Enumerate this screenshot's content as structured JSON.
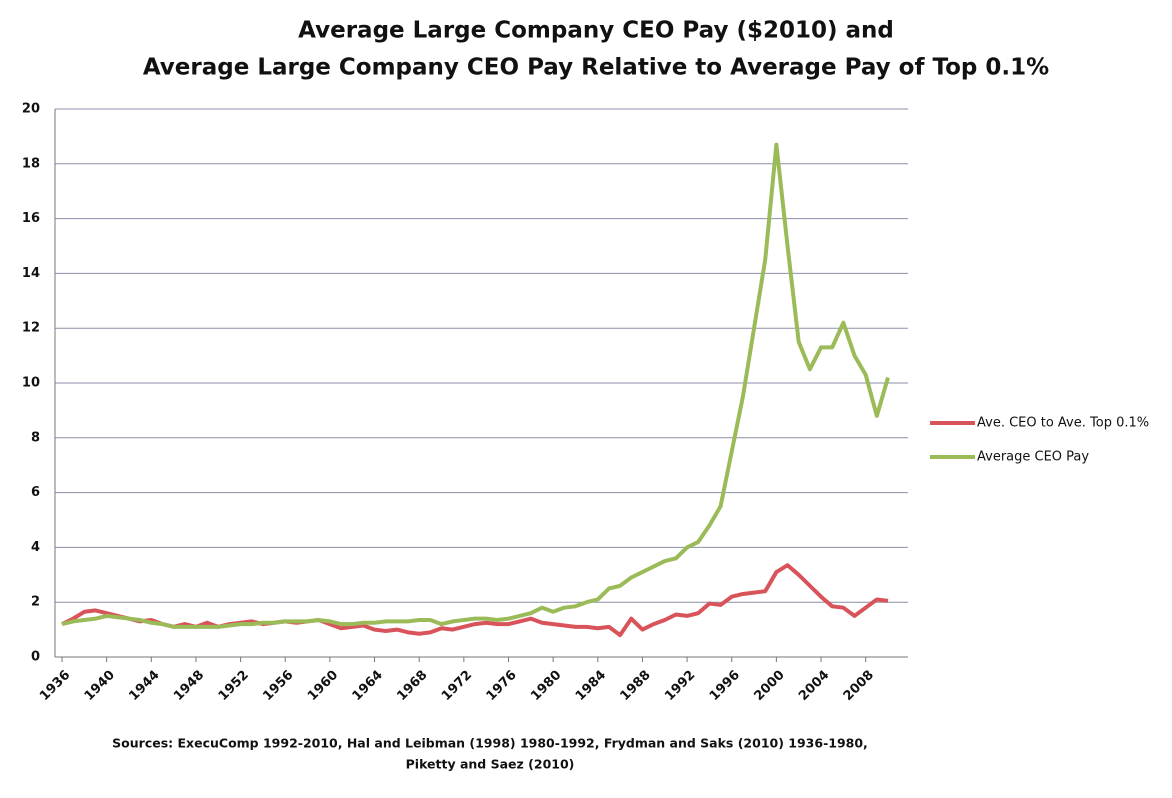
{
  "chart_data": {
    "type": "line",
    "title": [
      "Average Large Company CEO Pay ($2010) and",
      "Average Large Company CEO Pay Relative to Average Pay of Top 0.1%"
    ],
    "source": [
      "Sources:  ExecuComp 1992-2010, Hal and Leibman (1998) 1980-1992, Frydman and Saks (2010) 1936-1980,",
      "Piketty and Saez (2010)"
    ],
    "x": [
      1936,
      1937,
      1938,
      1939,
      1940,
      1941,
      1942,
      1943,
      1944,
      1945,
      1946,
      1947,
      1948,
      1949,
      1950,
      1951,
      1952,
      1953,
      1954,
      1955,
      1956,
      1957,
      1958,
      1959,
      1960,
      1961,
      1962,
      1963,
      1964,
      1965,
      1966,
      1967,
      1968,
      1969,
      1970,
      1971,
      1972,
      1973,
      1974,
      1975,
      1976,
      1977,
      1978,
      1979,
      1980,
      1981,
      1982,
      1983,
      1984,
      1985,
      1986,
      1987,
      1988,
      1989,
      1990,
      1991,
      1992,
      1993,
      1994,
      1995,
      1996,
      1997,
      1998,
      1999,
      2000,
      2001,
      2002,
      2003,
      2004,
      2005,
      2006,
      2007,
      2008,
      2009,
      2010
    ],
    "series": [
      {
        "name": "Ave. CEO to Ave. Top 0.1%",
        "color": "#d9545a",
        "values": [
          1.2,
          1.4,
          1.65,
          1.7,
          1.6,
          1.5,
          1.4,
          1.3,
          1.35,
          1.2,
          1.1,
          1.2,
          1.1,
          1.25,
          1.1,
          1.2,
          1.25,
          1.3,
          1.2,
          1.25,
          1.3,
          1.25,
          1.3,
          1.35,
          1.2,
          1.05,
          1.1,
          1.15,
          1.0,
          0.95,
          1.0,
          0.9,
          0.85,
          0.9,
          1.05,
          1.0,
          1.1,
          1.2,
          1.25,
          1.2,
          1.2,
          1.3,
          1.4,
          1.25,
          1.2,
          1.15,
          1.1,
          1.1,
          1.05,
          1.1,
          0.8,
          1.4,
          1.0,
          1.2,
          1.35,
          1.55,
          1.5,
          1.6,
          1.95,
          1.9,
          2.2,
          2.3,
          2.35,
          2.4,
          3.1,
          3.35,
          3.0,
          2.6,
          2.2,
          1.85,
          1.8,
          1.5,
          1.8,
          2.1,
          2.05
        ]
      },
      {
        "name": "Average CEO Pay",
        "color": "#9bbb59",
        "values": [
          1.2,
          1.3,
          1.35,
          1.4,
          1.5,
          1.45,
          1.4,
          1.35,
          1.25,
          1.2,
          1.1,
          1.1,
          1.1,
          1.1,
          1.1,
          1.15,
          1.2,
          1.2,
          1.25,
          1.25,
          1.3,
          1.3,
          1.3,
          1.35,
          1.3,
          1.2,
          1.2,
          1.25,
          1.25,
          1.3,
          1.3,
          1.3,
          1.35,
          1.35,
          1.2,
          1.3,
          1.35,
          1.4,
          1.4,
          1.35,
          1.4,
          1.5,
          1.6,
          1.8,
          1.65,
          1.8,
          1.85,
          2.0,
          2.1,
          2.5,
          2.6,
          2.9,
          3.1,
          3.3,
          3.5,
          3.6,
          4.0,
          4.2,
          4.8,
          5.5,
          7.5,
          9.5,
          12.0,
          14.5,
          18.7,
          15.0,
          11.5,
          10.5,
          11.3,
          11.3,
          12.2,
          11.0,
          10.3,
          8.8,
          10.2
        ]
      }
    ],
    "xlim": [
      1936,
      2010
    ],
    "xticks": [
      1936,
      1940,
      1944,
      1948,
      1952,
      1956,
      1960,
      1964,
      1968,
      1972,
      1976,
      1980,
      1984,
      1988,
      1992,
      1996,
      2000,
      2004,
      2008
    ],
    "ylim": [
      0,
      20
    ],
    "yticks": [
      0,
      2,
      4,
      6,
      8,
      10,
      12,
      14,
      16,
      18,
      20
    ],
    "grid": true,
    "legend": "right"
  }
}
